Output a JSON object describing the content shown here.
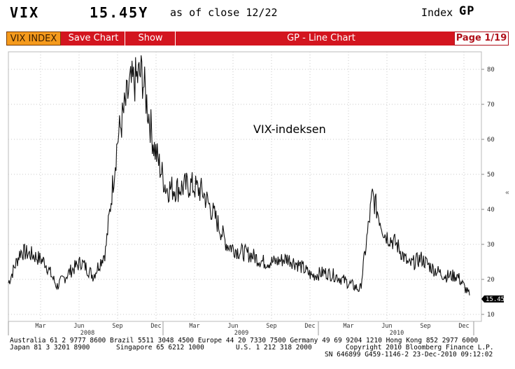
{
  "header": {
    "ticker": "VIX",
    "price": "15.45Y",
    "as_of": "as of close 12/22",
    "index_label": "Index",
    "function_code": "GP"
  },
  "toolbar": {
    "security_tab": "VIX INDEX",
    "save_chart": "Save Chart",
    "show": "Show",
    "title": "GP - Line Chart",
    "page": "Page 1/19"
  },
  "chart_data": {
    "type": "line",
    "annotation": "VIX-indeksen",
    "last_value": "15.45",
    "y_ticks": [
      10,
      20,
      30,
      40,
      50,
      60,
      70,
      80
    ],
    "ylim": [
      8,
      85
    ],
    "month_ticks": [
      "Mar",
      "Jun",
      "Sep",
      "Dec",
      "Mar",
      "Jun",
      "Sep",
      "Dec",
      "Mar",
      "Jun",
      "Sep",
      "Dec"
    ],
    "year_labels": [
      "2008",
      "2009",
      "2010"
    ],
    "grid": true,
    "series": [
      {
        "x": [
          "2008-01",
          "2008-02",
          "2008-03",
          "2008-04",
          "2008-05",
          "2008-06",
          "2008-07",
          "2008-08",
          "2008-09",
          "2008-10a",
          "2008-10b",
          "2008-11a",
          "2008-11b",
          "2008-12",
          "2009-01",
          "2009-02",
          "2009-03",
          "2009-04",
          "2009-05",
          "2009-06",
          "2009-07",
          "2009-08",
          "2009-09",
          "2009-10",
          "2009-11",
          "2009-12",
          "2010-01",
          "2010-02",
          "2010-03",
          "2010-04",
          "2010-05a",
          "2010-05b",
          "2010-06",
          "2010-07",
          "2010-08",
          "2010-09",
          "2010-10",
          "2010-11",
          "2010-12"
        ],
        "values": [
          19,
          28,
          27,
          25,
          18,
          22,
          25,
          21,
          28,
          60,
          75,
          79,
          58,
          46,
          46,
          47,
          45,
          38,
          30,
          28,
          27,
          25,
          25,
          26,
          24,
          21,
          22,
          21,
          19,
          17,
          44,
          33,
          30,
          24,
          26,
          23,
          21,
          21,
          15.45
        ]
      }
    ]
  },
  "footer": {
    "line1": "Australia 61 2 9777 8600 Brazil 5511 3048 4500 Europe 44 20 7330 7500 Germany 49 69 9204 1210 Hong Kong 852 2977 6000",
    "line2a": "Japan 81 3 3201 8900",
    "line2b": "Singapore 65 6212 1000",
    "line2c": "U.S. 1 212 318 2000",
    "line2d": "Copyright 2010 Bloomberg Finance L.P.",
    "line3": "SN 646899 G459-1146-2 23-Dec-2010 09:12:02"
  }
}
